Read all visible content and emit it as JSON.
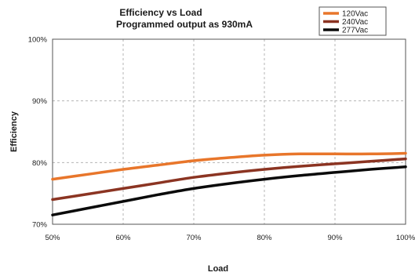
{
  "chart_data": {
    "type": "line",
    "title": "Efficiency vs Load",
    "subtitle": "Programmed output as 930mA",
    "xlabel": "Load",
    "ylabel": "Efficiency",
    "x_ticks": [
      "50%",
      "60%",
      "70%",
      "80%",
      "90%",
      "100%"
    ],
    "y_ticks": [
      "70%",
      "80%",
      "90%",
      "100%"
    ],
    "xlim": [
      50,
      100
    ],
    "ylim": [
      70,
      100
    ],
    "grid": true,
    "legend_position": "top-right",
    "x": [
      50,
      55,
      60,
      65,
      70,
      75,
      80,
      85,
      90,
      95,
      100
    ],
    "series": [
      {
        "name": "120Vac",
        "color": "#e8762b",
        "values": [
          77.3,
          78.1,
          78.9,
          79.6,
          80.3,
          80.8,
          81.2,
          81.4,
          81.4,
          81.4,
          81.5
        ]
      },
      {
        "name": "240Vac",
        "color": "#8b3422",
        "values": [
          74.0,
          74.9,
          75.8,
          76.7,
          77.6,
          78.3,
          78.9,
          79.4,
          79.8,
          80.2,
          80.6
        ]
      },
      {
        "name": "277Vac",
        "color": "#0a0a0a",
        "values": [
          71.5,
          72.6,
          73.7,
          74.8,
          75.8,
          76.6,
          77.3,
          77.9,
          78.4,
          78.9,
          79.3
        ]
      }
    ]
  }
}
